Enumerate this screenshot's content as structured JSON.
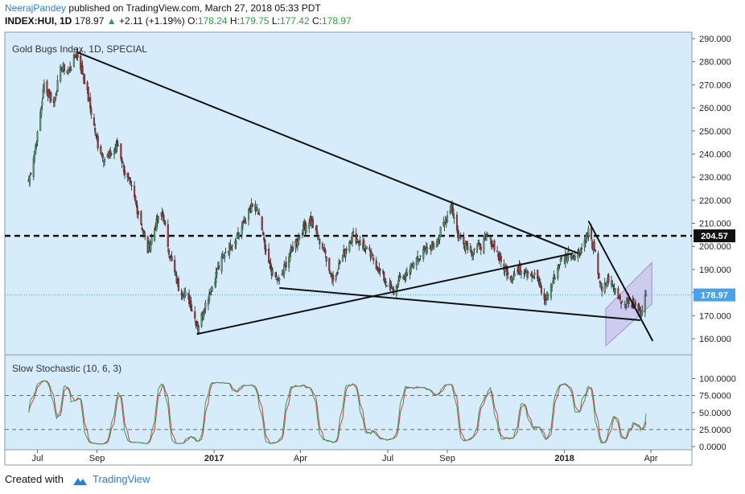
{
  "header": {
    "author": "NeerajPandey",
    "published_text": "published on TradingView.com, March 27, 2018 05:33 PDT",
    "symbol": "INDEX:HUI, 1D",
    "last": "178.97",
    "change": "+2.11 (+1.19%)",
    "open_label": "O:",
    "open": "178.24",
    "high_label": "H:",
    "high": "179.75",
    "low_label": "L:",
    "low": "177.42",
    "close_label": "C:",
    "close": "178.97"
  },
  "footer": {
    "created_with": "Created with",
    "brand": "TradingView",
    "logo_icon": "tradingview-cloud-icon"
  },
  "colors": {
    "bg": "#d7ecfb",
    "up": "#54a26f",
    "down": "#a93535",
    "stoch_k": "#3d9a56",
    "stoch_d": "#d23c3c",
    "price_tag": "#4aa1e8",
    "level_tag": "#111111",
    "channel_fill": "#c6b8e8"
  },
  "chart_data": [
    {
      "type": "candlestick",
      "title": "Gold Bugs Index, 1D, SPECIAL",
      "ylim": [
        155,
        293
      ],
      "yticks": [
        "290.000",
        "280.000",
        "270.000",
        "260.000",
        "250.000",
        "240.000",
        "230.000",
        "220.000",
        "210.000",
        "200.000",
        "190.000",
        "180.000",
        "170.000",
        "160.000"
      ],
      "xticks": [
        "Jul",
        "Sep",
        "2017",
        "Apr",
        "Jul",
        "Sep",
        "2018",
        "Apr"
      ],
      "horizontal_level": {
        "value": 204.57,
        "label": "204.57",
        "style": "dashed"
      },
      "last_price": {
        "value": 178.97,
        "label": "178.97",
        "style": "dotted"
      },
      "anchors": [
        [
          "2016-06-22",
          228
        ],
        [
          "2016-07-01",
          248
        ],
        [
          "2016-07-08",
          270
        ],
        [
          "2016-07-18",
          262
        ],
        [
          "2016-07-26",
          278
        ],
        [
          "2016-08-03",
          276
        ],
        [
          "2016-08-11",
          284
        ],
        [
          "2016-08-19",
          272
        ],
        [
          "2016-08-26",
          258
        ],
        [
          "2016-09-02",
          244
        ],
        [
          "2016-09-09",
          238
        ],
        [
          "2016-09-16",
          240
        ],
        [
          "2016-09-23",
          244
        ],
        [
          "2016-09-30",
          232
        ],
        [
          "2016-10-07",
          225
        ],
        [
          "2016-10-17",
          210
        ],
        [
          "2016-10-24",
          198
        ],
        [
          "2016-10-31",
          208
        ],
        [
          "2016-11-08",
          215
        ],
        [
          "2016-11-16",
          196
        ],
        [
          "2016-11-25",
          182
        ],
        [
          "2016-12-05",
          178
        ],
        [
          "2016-12-15",
          165
        ],
        [
          "2016-12-23",
          175
        ],
        [
          "2017-01-05",
          190
        ],
        [
          "2017-01-13",
          198
        ],
        [
          "2017-01-23",
          203
        ],
        [
          "2017-02-01",
          210
        ],
        [
          "2017-02-09",
          217
        ],
        [
          "2017-02-17",
          214
        ],
        [
          "2017-02-24",
          196
        ],
        [
          "2017-03-03",
          188
        ],
        [
          "2017-03-10",
          185
        ],
        [
          "2017-03-20",
          196
        ],
        [
          "2017-03-31",
          205
        ],
        [
          "2017-04-11",
          212
        ],
        [
          "2017-04-18",
          205
        ],
        [
          "2017-04-26",
          198
        ],
        [
          "2017-05-05",
          185
        ],
        [
          "2017-05-15",
          196
        ],
        [
          "2017-05-25",
          205
        ],
        [
          "2017-06-06",
          200
        ],
        [
          "2017-06-15",
          195
        ],
        [
          "2017-06-27",
          186
        ],
        [
          "2017-07-07",
          180
        ],
        [
          "2017-07-14",
          186
        ],
        [
          "2017-07-24",
          190
        ],
        [
          "2017-08-02",
          196
        ],
        [
          "2017-08-11",
          198
        ],
        [
          "2017-08-21",
          203
        ],
        [
          "2017-08-29",
          210
        ],
        [
          "2017-09-05",
          218
        ],
        [
          "2017-09-12",
          205
        ],
        [
          "2017-09-19",
          202
        ],
        [
          "2017-09-27",
          198
        ],
        [
          "2017-10-05",
          200
        ],
        [
          "2017-10-13",
          204
        ],
        [
          "2017-10-20",
          200
        ],
        [
          "2017-10-27",
          193
        ],
        [
          "2017-11-06",
          187
        ],
        [
          "2017-11-15",
          190
        ],
        [
          "2017-11-24",
          190
        ],
        [
          "2017-12-04",
          186
        ],
        [
          "2017-12-11",
          176
        ],
        [
          "2017-12-18",
          183
        ],
        [
          "2017-12-27",
          193
        ],
        [
          "2018-01-05",
          197
        ],
        [
          "2018-01-12",
          196
        ],
        [
          "2018-01-19",
          199
        ],
        [
          "2018-01-26",
          207
        ],
        [
          "2018-02-02",
          196
        ],
        [
          "2018-02-09",
          180
        ],
        [
          "2018-02-16",
          186
        ],
        [
          "2018-02-23",
          181
        ],
        [
          "2018-03-02",
          176
        ],
        [
          "2018-03-09",
          176
        ],
        [
          "2018-03-15",
          174
        ],
        [
          "2018-03-21",
          172
        ],
        [
          "2018-03-27",
          179
        ]
      ],
      "trendlines": [
        {
          "name": "upper-downtrend-line",
          "from": [
            "2016-08-12",
            284
          ],
          "to": [
            "2018-01-15",
            197
          ]
        },
        {
          "name": "lower-wedge-line",
          "from": [
            "2017-03-10",
            182
          ],
          "to": [
            "2018-03-21",
            168
          ]
        },
        {
          "name": "rising-support-line",
          "from": [
            "2016-12-14",
            162
          ],
          "to": [
            "2018-01-10",
            197
          ]
        },
        {
          "name": "short-term-downtrend-line",
          "from": [
            "2018-01-26",
            211
          ],
          "to": [
            "2018-04-03",
            159
          ]
        }
      ],
      "channel": {
        "points": [
          [
            "2018-02-13",
            173
          ],
          [
            "2018-04-02",
            193
          ],
          [
            "2018-04-02",
            175
          ],
          [
            "2018-02-13",
            157
          ]
        ]
      }
    },
    {
      "type": "line",
      "title": "Slow Stochastic (10, 6, 3)",
      "ylim": [
        -4,
        102
      ],
      "yticks": [
        "100.0000",
        "75.0000",
        "50.0000",
        "25.0000",
        "0.0000"
      ],
      "reference_lines": [
        75,
        25
      ],
      "series": [
        {
          "values": "%K"
        },
        {
          "values": "%D"
        }
      ]
    }
  ]
}
